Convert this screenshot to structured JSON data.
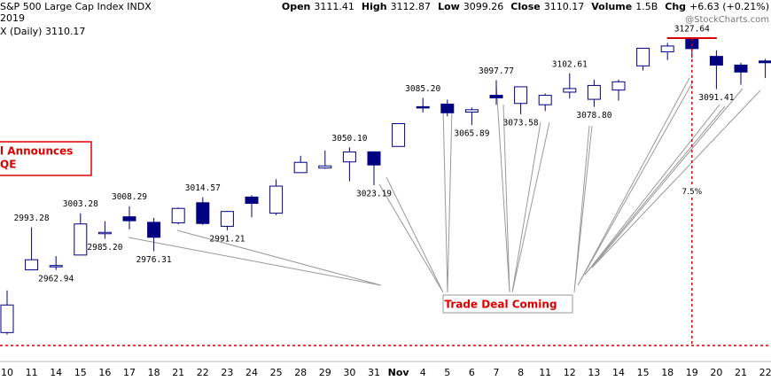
{
  "header": {
    "title": "S&P 500 Large Cap Index INDX",
    "year": "2019",
    "series_label": "X (Daily) 3110.17",
    "quote": [
      {
        "name": "Open",
        "value": "3111.41"
      },
      {
        "name": "High",
        "value": "3112.87"
      },
      {
        "name": "Low",
        "value": "3099.26"
      },
      {
        "name": "Close",
        "value": "3110.17"
      },
      {
        "name": "Volume",
        "value": "1.5B"
      },
      {
        "name": "Chg",
        "value": "+6.63 (+0.21%)"
      }
    ],
    "watermark": "@StockCharts.com"
  },
  "chart_data": {
    "type": "candlestick",
    "categories": [
      "10",
      "11",
      "14",
      "15",
      "16",
      "17",
      "18",
      "21",
      "22",
      "23",
      "24",
      "25",
      "28",
      "29",
      "30",
      "31",
      "Nov",
      "4",
      "5",
      "6",
      "7",
      "8",
      "11",
      "12",
      "13",
      "14",
      "15",
      "18",
      "19",
      "20",
      "21",
      "22"
    ],
    "open": [
      2918.55,
      2963.07,
      2965.81,
      2973.61,
      2989.68,
      3000.77,
      2996.84,
      2996.48,
      3010.73,
      2994.01,
      3014.78,
      3003.32,
      3032.12,
      3035.39,
      3039.74,
      3046.9,
      3050.72,
      3078.96,
      3080.8,
      3075.1,
      3087.02,
      3081.25,
      3080.33,
      3089.28,
      3084.18,
      3090.75,
      3107.92,
      3117.91,
      3127.45,
      3114.66,
      3108.49,
      3111.41
    ],
    "high": [
      2948.46,
      2993.28,
      2972.84,
      3003.28,
      2997.54,
      3008.29,
      3000,
      3007.33,
      3014.57,
      3004.78,
      3016.07,
      3027.39,
      3044.08,
      3047.87,
      3050.1,
      3046.9,
      3066.95,
      3085.2,
      3083.95,
      3078.34,
      3097.77,
      3093.09,
      3088.33,
      3102.61,
      3098.06,
      3098.2,
      3120.46,
      3124.17,
      3127.64,
      3118.97,
      3110.11,
      3112.87
    ],
    "low": [
      2917.12,
      2963.07,
      2962.94,
      2973.61,
      2985.2,
      2991.79,
      2976.31,
      2995.35,
      2995.04,
      2991.21,
      3000.42,
      3001.94,
      3032.12,
      3034.81,
      3025.96,
      3023.19,
      3050.72,
      3074.87,
      3072.15,
      3065.89,
      3080.23,
      3073.58,
      3075.82,
      3084.73,
      3078.8,
      3083.26,
      3104.6,
      3112.06,
      3113.47,
      3091.41,
      3094.55,
      3099.26
    ],
    "close": [
      2938.13,
      2970.27,
      2966.15,
      2995.68,
      2989.69,
      2997.95,
      2986.2,
      3006.72,
      2995.99,
      3004.52,
      3010.29,
      3022.55,
      3039.42,
      3036.89,
      3046.77,
      3037.56,
      3066.91,
      3078.27,
      3074.62,
      3076.78,
      3085.18,
      3093.08,
      3087.01,
      3091.84,
      3094.04,
      3096.63,
      3120.46,
      3122.03,
      3120.18,
      3108.46,
      3103.54,
      3110.17
    ],
    "high_labels": [
      null,
      "2993.28",
      null,
      "3003.28",
      null,
      "3008.29",
      null,
      null,
      "3014.57",
      null,
      null,
      null,
      null,
      null,
      "3050.10",
      null,
      null,
      "3085.20",
      null,
      null,
      "3097.77",
      null,
      null,
      "3102.61",
      null,
      null,
      null,
      null,
      "3127.64",
      null,
      null,
      null
    ],
    "low_labels": [
      null,
      null,
      "2962.94",
      null,
      "2985.20",
      null,
      "2976.31",
      null,
      null,
      "2991.21",
      null,
      null,
      null,
      null,
      null,
      "3023.19",
      null,
      null,
      null,
      "3065.89",
      null,
      "3073.58",
      null,
      null,
      "3078.80",
      null,
      null,
      null,
      null,
      "3091.41",
      null,
      null
    ],
    "up_color": "#ffffff",
    "down_color": "#000080",
    "edge_color": "#000080",
    "ylim": [
      2898,
      3154.7
    ],
    "support_level": 2909.43,
    "annotations": {
      "fed": [
        "l Announces",
        "QE"
      ],
      "trade": "Trade Deal Coming",
      "drop": "7.5%"
    }
  }
}
